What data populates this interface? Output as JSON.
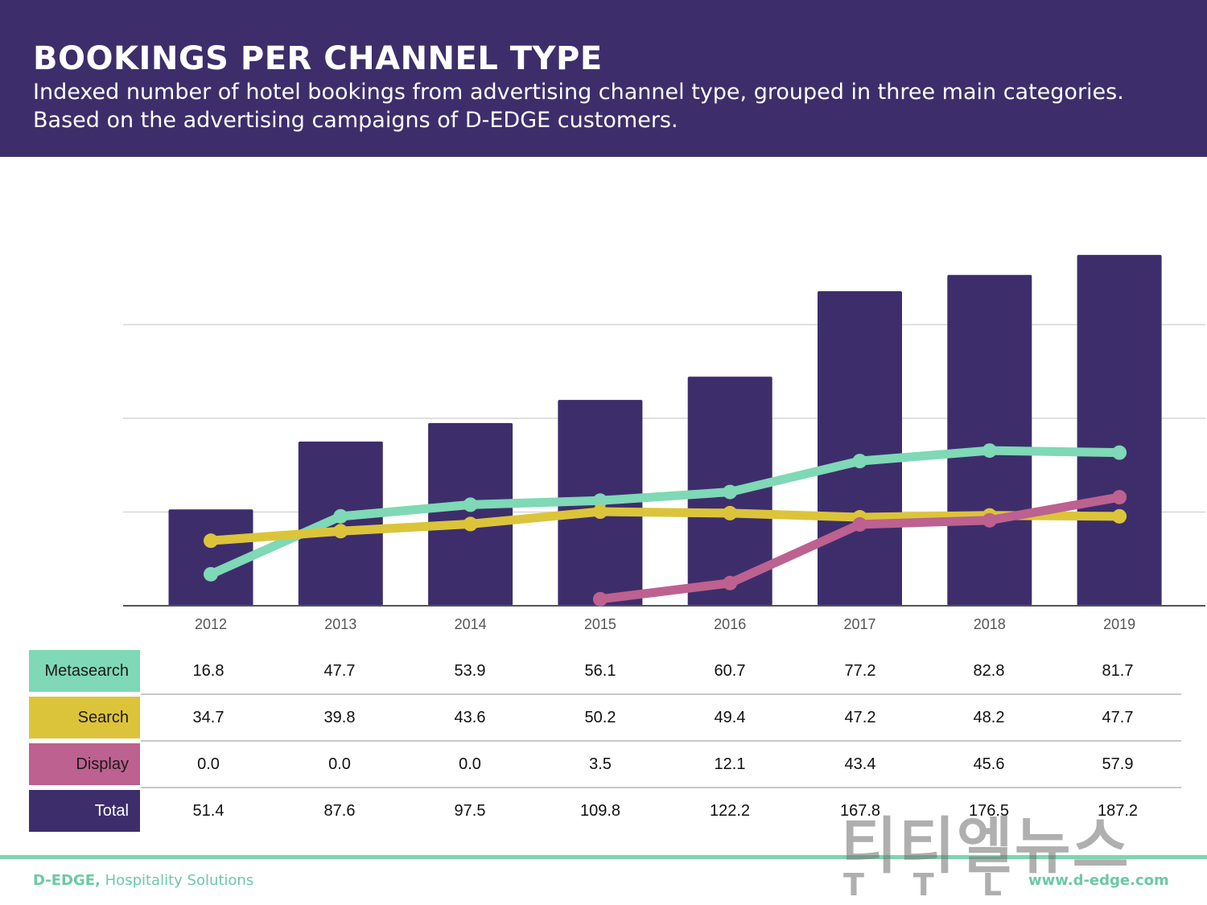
{
  "header": {
    "title": "BOOKINGS PER CHANNEL TYPE",
    "subtitle": "Indexed number of hotel bookings from advertising channel type, grouped in three main categories. Based on the advertising campaigns of D-EDGE customers."
  },
  "colors": {
    "header_bg": "#3d2e6b",
    "metasearch": "#7fd8b6",
    "search": "#dcc43a",
    "display": "#bd6190",
    "total": "#3d2e6b",
    "footer": "#6cc9a5"
  },
  "chart_data": {
    "type": "bar",
    "categories": [
      "2012",
      "2013",
      "2014",
      "2015",
      "2016",
      "2017",
      "2018",
      "2019"
    ],
    "ylim": [
      0,
      200
    ],
    "grid": true,
    "series": [
      {
        "name": "Metasearch",
        "type": "line",
        "values": [
          16.8,
          47.7,
          53.9,
          56.1,
          60.7,
          77.2,
          82.8,
          81.7
        ]
      },
      {
        "name": "Search",
        "type": "line",
        "values": [
          34.7,
          39.8,
          43.6,
          50.2,
          49.4,
          47.2,
          48.2,
          47.7
        ]
      },
      {
        "name": "Display",
        "type": "line",
        "values": [
          0.0,
          0.0,
          0.0,
          3.5,
          12.1,
          43.4,
          45.6,
          57.9
        ]
      },
      {
        "name": "Total",
        "type": "bar",
        "values": [
          51.4,
          87.6,
          97.5,
          109.8,
          122.2,
          167.8,
          176.5,
          187.2
        ]
      }
    ],
    "table": {
      "rows": [
        {
          "label": "Metasearch",
          "values": [
            "16.8",
            "47.7",
            "53.9",
            "56.1",
            "60.7",
            "77.2",
            "82.8",
            "81.7"
          ]
        },
        {
          "label": "Search",
          "values": [
            "34.7",
            "39.8",
            "43.6",
            "50.2",
            "49.4",
            "47.2",
            "48.2",
            "47.7"
          ]
        },
        {
          "label": "Display",
          "values": [
            "0.0",
            "0.0",
            "0.0",
            "3.5",
            "12.1",
            "43.4",
            "45.6",
            "57.9"
          ]
        },
        {
          "label": "Total",
          "values": [
            "51.4",
            "87.6",
            "97.5",
            "109.8",
            "122.2",
            "167.8",
            "176.5",
            "187.2"
          ]
        }
      ]
    }
  },
  "footer": {
    "brand": "D-EDGE,",
    "tagline": "Hospitality Solutions",
    "website": "www.d-edge.com"
  },
  "watermark": {
    "korean": "티티엘뉴스",
    "latin": "TTL"
  }
}
